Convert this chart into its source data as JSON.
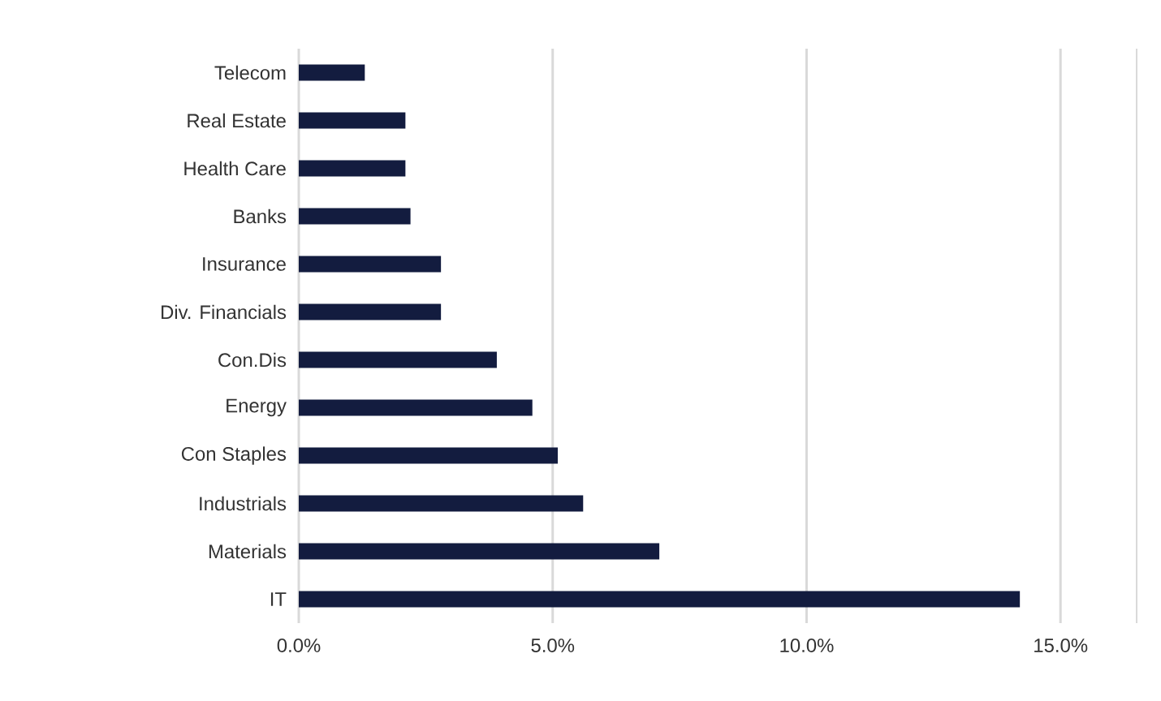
{
  "chart_data": {
    "type": "bar",
    "orientation": "horizontal",
    "categories": [
      "Telecom",
      "Real Estate",
      "Health Care",
      "Banks",
      "Insurance",
      "Div. Financials",
      "Con.Dis",
      "Energy",
      "Con Staples",
      "Industrials",
      "Materials",
      "IT"
    ],
    "values": [
      1.3,
      2.1,
      2.1,
      2.2,
      2.8,
      2.8,
      3.9,
      4.6,
      5.1,
      5.6,
      7.1,
      14.2
    ],
    "color": "#131c3f",
    "xlim": [
      0,
      16.5
    ],
    "xticks": [
      {
        "value": 0,
        "label": "0.0%"
      },
      {
        "value": 5,
        "label": "5.0%"
      },
      {
        "value": 10,
        "label": "10.0%"
      },
      {
        "value": 15,
        "label": "15.0%"
      }
    ],
    "grid": "x"
  }
}
